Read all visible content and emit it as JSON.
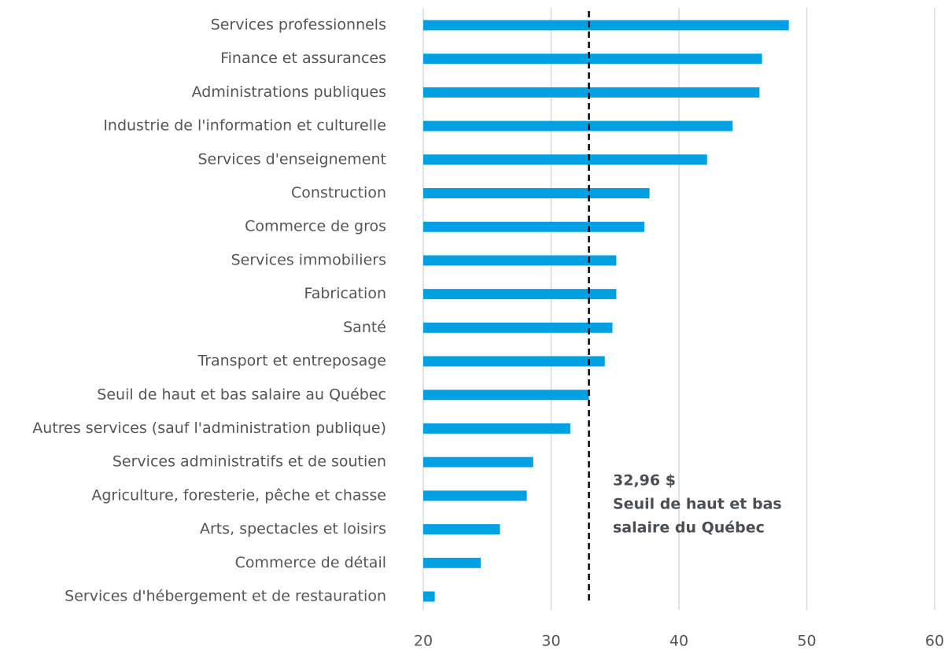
{
  "chart_data": {
    "type": "barh",
    "categories": [
      "Services professionnels",
      "Finance et assurances",
      "Administrations publiques",
      "Industrie de l'information et culturelle",
      "Services d'enseignement",
      "Construction",
      "Commerce de gros",
      "Services immobiliers",
      "Fabrication",
      "Santé",
      "Transport et entreposage",
      "Seuil de haut et bas salaire au Québec",
      "Autres services (sauf l'administration publique)",
      "Services administratifs et de soutien",
      "Agriculture, foresterie, pêche et chasse",
      "Arts, spectacles et loisirs",
      "Commerce de détail",
      "Services d'hébergement et de restauration"
    ],
    "values": [
      48.6,
      46.5,
      46.3,
      44.2,
      42.2,
      37.7,
      37.3,
      35.1,
      35.1,
      34.8,
      34.2,
      32.96,
      31.5,
      28.6,
      28.1,
      26.0,
      24.5,
      20.9
    ],
    "color": "#00a0e3",
    "xlim": [
      20,
      60
    ],
    "xticks": [
      20,
      30,
      40,
      50,
      60
    ],
    "grid": true,
    "reference_line": {
      "value": 32.96,
      "annotation": [
        "32,96 $",
        "Seuil de haut et bas",
        "salaire du Québec"
      ]
    }
  }
}
